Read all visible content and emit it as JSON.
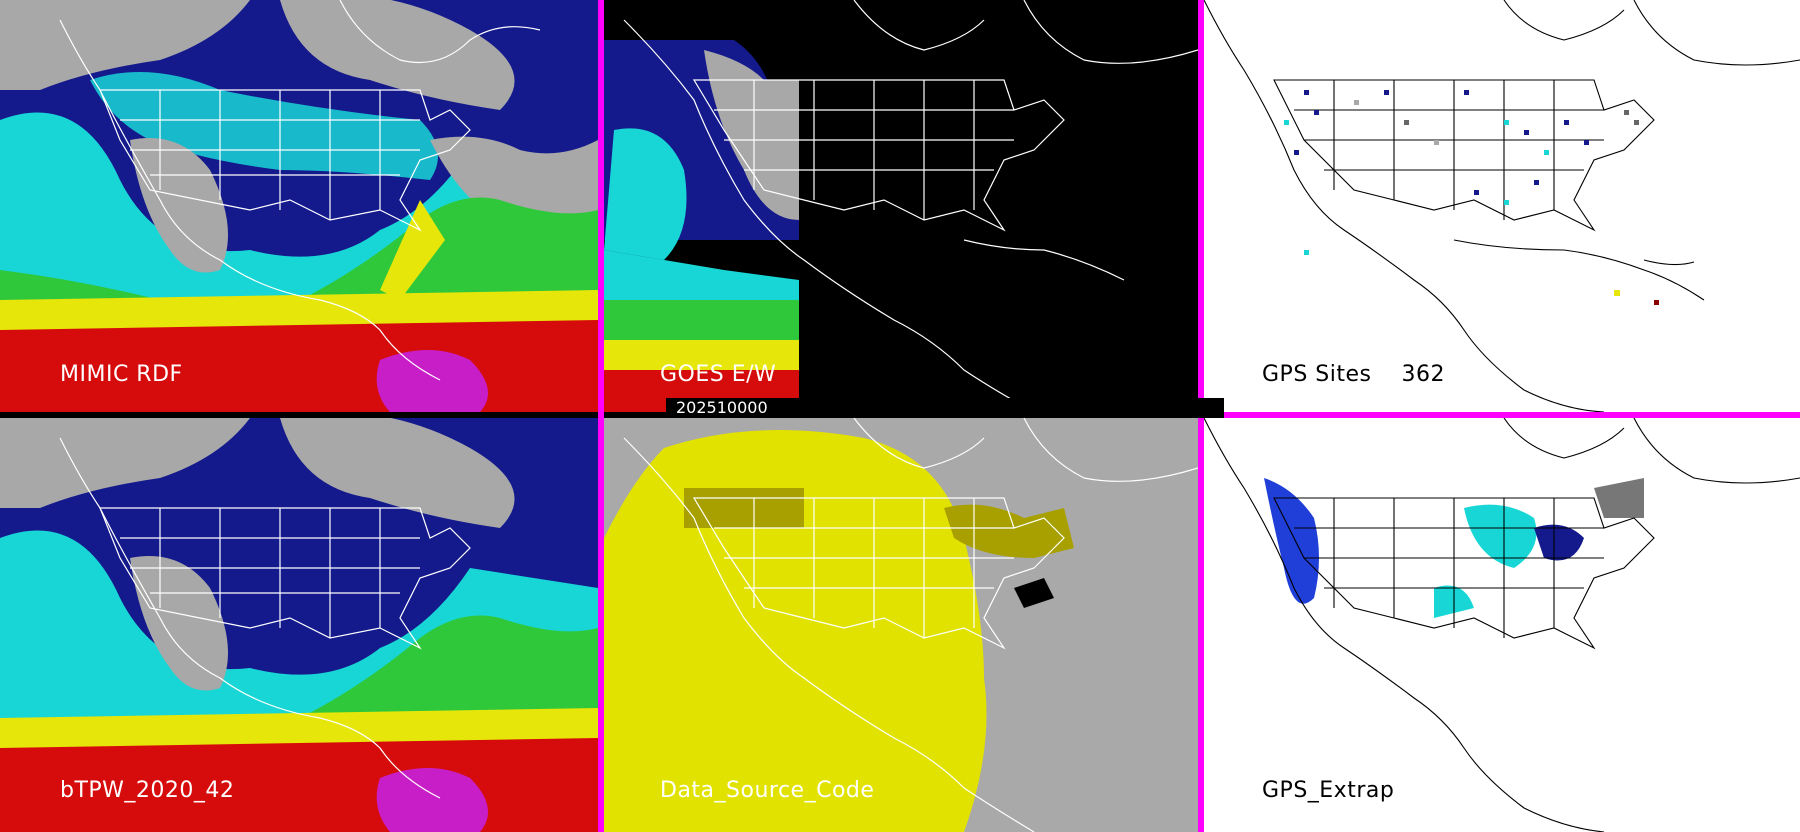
{
  "panels": [
    {
      "id": "mimic",
      "label": "MIMIC RDF"
    },
    {
      "id": "goes",
      "label": "GOES E/W"
    },
    {
      "id": "gps_sites",
      "label": "GPS Sites    362"
    },
    {
      "id": "btpw",
      "label": "bTPW_2020_42"
    },
    {
      "id": "dsc",
      "label": "Data_Source_Code"
    },
    {
      "id": "extrap",
      "label": "GPS_Extrap"
    }
  ],
  "timestamp": "202510000",
  "colors": {
    "divider": "#ff00ff",
    "cyan": "#19d6d6",
    "navy": "#141a8c",
    "blue": "#1f3fd8",
    "gray": "#a8a8a8",
    "green": "#2fc83a",
    "yellow": "#e6e60a",
    "red": "#d60c0c",
    "magenta": "#c81ec8",
    "dsc_yellow": "#e2e200",
    "dsc_gray": "#a9a9a9",
    "dsc_olive": "#a8a000"
  }
}
